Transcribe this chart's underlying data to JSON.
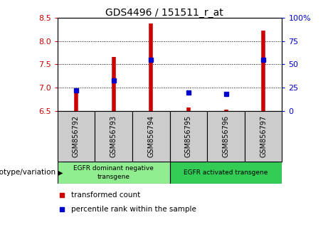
{
  "title": "GDS4496 / 151511_r_at",
  "samples": [
    "GSM856792",
    "GSM856793",
    "GSM856794",
    "GSM856795",
    "GSM856796",
    "GSM856797"
  ],
  "red_values": [
    6.88,
    7.65,
    8.38,
    6.58,
    6.52,
    8.22
  ],
  "blue_values_pct": [
    22,
    33,
    55,
    20,
    18,
    55
  ],
  "ylim_left": [
    6.5,
    8.5
  ],
  "ylim_right": [
    0,
    100
  ],
  "yticks_left": [
    6.5,
    7.0,
    7.5,
    8.0,
    8.5
  ],
  "yticks_right": [
    0,
    25,
    50,
    75,
    100
  ],
  "ytick_labels_right": [
    "0",
    "25",
    "50",
    "75",
    "100%"
  ],
  "group1_label": "EGFR dominant negative\ntransgene",
  "group2_label": "EGFR activated transgene",
  "group1_samples": [
    0,
    1,
    2
  ],
  "group2_samples": [
    3,
    4,
    5
  ],
  "group1_color": "#90ee90",
  "group2_color": "#33cc55",
  "xlabel_left": "genotype/variation",
  "legend_items": [
    "transformed count",
    "percentile rank within the sample"
  ],
  "red_color": "#cc0000",
  "blue_color": "#0000cc",
  "tick_bg": "#cccccc"
}
